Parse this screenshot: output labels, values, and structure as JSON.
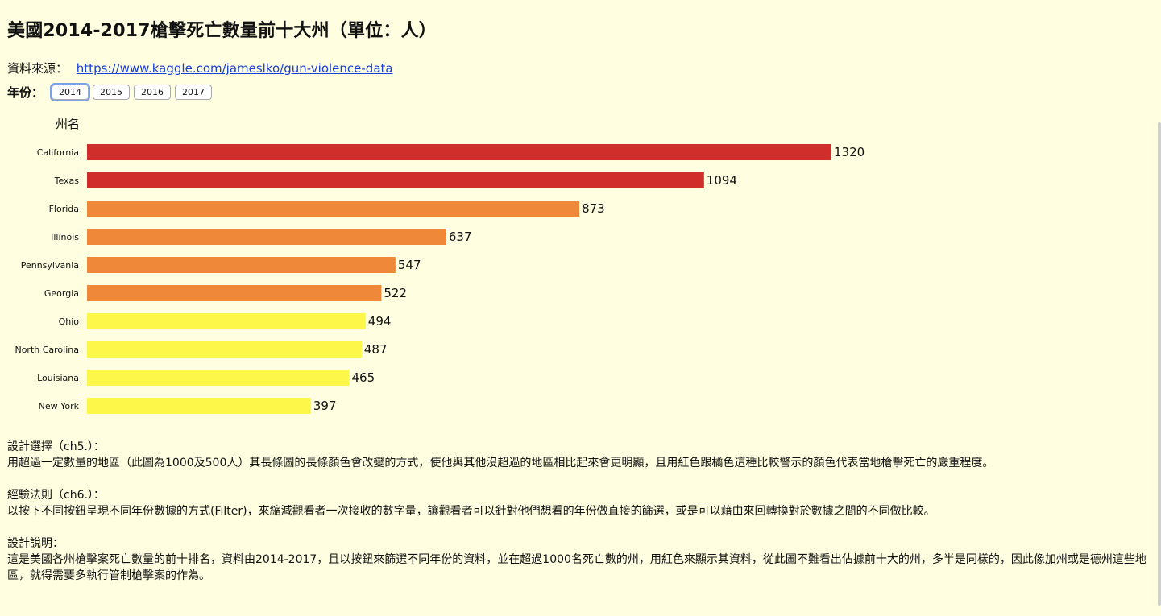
{
  "title": "美國2014-2017槍擊死亡數量前十大州（單位：人）",
  "source": {
    "label": "資料來源：",
    "link_text": "https://www.kaggle.com/jameslko/gun-violence-data"
  },
  "year_selector": {
    "label": "年份：",
    "options": [
      "2014",
      "2015",
      "2016",
      "2017"
    ],
    "selected": "2014"
  },
  "chart_data": {
    "type": "bar",
    "orientation": "horizontal",
    "ylabel": "州名",
    "categories": [
      "California",
      "Texas",
      "Florida",
      "Illinois",
      "Pennsylvania",
      "Georgia",
      "Ohio",
      "North Carolina",
      "Louisiana",
      "New York"
    ],
    "values": [
      1320,
      1094,
      873,
      637,
      547,
      522,
      494,
      487,
      465,
      397
    ],
    "colors": [
      "#cf2e2a",
      "#cf2e2a",
      "#f0883a",
      "#f0883a",
      "#f0883a",
      "#f0883a",
      "#fdf74a",
      "#fdf74a",
      "#fdf74a",
      "#fdf74a"
    ],
    "data_labels": true,
    "grid": false,
    "legend": "none"
  },
  "text_blocks": [
    {
      "heading": "設計選擇（ch5.）：",
      "body": "用超過一定數量的地區（此圖為1000及500人）其長條圖的長條顏色會改變的方式，使他與其他沒超過的地區相比起來會更明顯，且用紅色跟橘色這種比較警示的顏色代表當地槍擊死亡的嚴重程度。"
    },
    {
      "heading": "經驗法則（ch6.）：",
      "body": "以按下不同按鈕呈現不同年份數據的方式(Filter)，來縮減觀看者一次接收的數字量，讓觀看者可以針對他們想看的年份做直接的篩選，或是可以藉由來回轉換對於數據之間的不同做比較。"
    },
    {
      "heading": "設計說明：",
      "body": "這是美國各州槍擊案死亡數量的前十排名，資料由2014-2017，且以按鈕來篩選不同年份的資料，並在超過1000名死亡數的州，用紅色來顯示其資料，從此圖不難看出佔據前十大的州，多半是同樣的，因此像加州或是德州這些地區，就得需要多執行管制槍擊案的作為。"
    }
  ]
}
